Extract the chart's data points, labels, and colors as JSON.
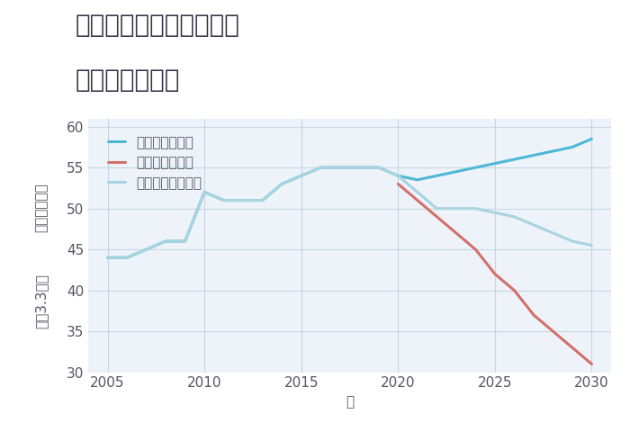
{
  "title_line1": "愛知県豊田市広久手町の",
  "title_line2": "土地の価格推移",
  "xlabel": "年",
  "ylabel_top": "単価（万円）",
  "ylabel_bottom": "坪（3.3㎡）",
  "good_scenario": {
    "label": "グッドシナリオ",
    "color": "#4db8d4",
    "x": [
      2005,
      2006,
      2007,
      2008,
      2009,
      2010,
      2011,
      2012,
      2013,
      2014,
      2015,
      2016,
      2017,
      2018,
      2019,
      2020,
      2021,
      2022,
      2023,
      2024,
      2025,
      2026,
      2027,
      2028,
      2029,
      2030
    ],
    "y": [
      44,
      44,
      45,
      46,
      46,
      52,
      51,
      51,
      51,
      53,
      54,
      55,
      55,
      55,
      55,
      54,
      53.5,
      54,
      54.5,
      55,
      55.5,
      56,
      56.5,
      57,
      57.5,
      58.5
    ]
  },
  "bad_scenario": {
    "label": "バッドシナリオ",
    "color": "#d4706a",
    "x": [
      2020,
      2021,
      2022,
      2023,
      2024,
      2025,
      2026,
      2027,
      2028,
      2029,
      2030
    ],
    "y": [
      53,
      51,
      49,
      47,
      45,
      42,
      40,
      37,
      35,
      33,
      31
    ]
  },
  "normal_scenario": {
    "label": "ノーマルシナリオ",
    "color": "#a8d4e0",
    "x": [
      2005,
      2006,
      2007,
      2008,
      2009,
      2010,
      2011,
      2012,
      2013,
      2014,
      2015,
      2016,
      2017,
      2018,
      2019,
      2020,
      2021,
      2022,
      2023,
      2024,
      2025,
      2026,
      2027,
      2028,
      2029,
      2030
    ],
    "y": [
      44,
      44,
      45,
      46,
      46,
      52,
      51,
      51,
      51,
      53,
      54,
      55,
      55,
      55,
      55,
      54,
      52,
      50,
      50,
      50,
      49.5,
      49,
      48,
      47,
      46,
      45.5
    ]
  },
  "xlim": [
    2004,
    2031
  ],
  "ylim": [
    30,
    61
  ],
  "yticks": [
    30,
    35,
    40,
    45,
    50,
    55,
    60
  ],
  "xticks": [
    2005,
    2010,
    2015,
    2020,
    2025,
    2030
  ],
  "background_color": "#eef3f9",
  "grid_color": "#c5d5e5",
  "title_fontsize": 20,
  "axis_fontsize": 11,
  "legend_fontsize": 11,
  "line_width": 2.2,
  "text_color": "#555566"
}
